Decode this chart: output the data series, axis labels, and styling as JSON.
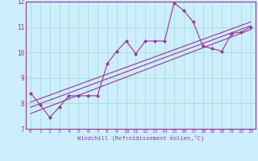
{
  "xlabel": "Windchill (Refroidissement éolien,°C)",
  "bg_color": "#cceeff",
  "line_color": "#993399",
  "grid_color": "#aaddcc",
  "xlim": [
    -0.5,
    23.5
  ],
  "ylim": [
    7,
    12
  ],
  "xticks": [
    0,
    1,
    2,
    3,
    4,
    5,
    6,
    7,
    8,
    9,
    10,
    11,
    12,
    13,
    14,
    15,
    16,
    17,
    18,
    19,
    20,
    21,
    22,
    23
  ],
  "yticks": [
    7,
    8,
    9,
    10,
    11,
    12
  ],
  "main_x": [
    0,
    1,
    2,
    3,
    4,
    5,
    6,
    7,
    8,
    9,
    10,
    11,
    12,
    13,
    14,
    15,
    16,
    17,
    18,
    19,
    20,
    21,
    22,
    23
  ],
  "main_y": [
    8.4,
    7.95,
    7.45,
    7.85,
    8.3,
    8.3,
    8.3,
    8.3,
    9.55,
    10.05,
    10.45,
    9.95,
    10.45,
    10.45,
    10.45,
    11.95,
    11.65,
    11.2,
    10.25,
    10.15,
    10.05,
    10.75,
    10.8,
    11.0
  ],
  "line1_x": [
    0,
    23
  ],
  "line1_y": [
    7.6,
    10.9
  ],
  "line2_x": [
    0,
    23
  ],
  "line2_y": [
    7.85,
    11.05
  ],
  "line3_x": [
    0,
    23
  ],
  "line3_y": [
    8.05,
    11.2
  ]
}
